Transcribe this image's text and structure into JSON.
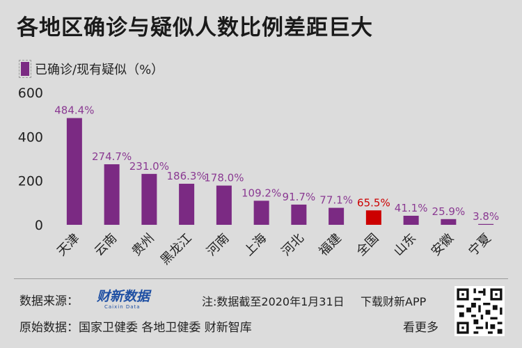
{
  "title": "各地区确诊与疑似人数比例差距巨大",
  "legend": {
    "label": "已确诊/现有疑似（%）",
    "color": "#7b2a83"
  },
  "colors": {
    "bar": "#7b2a83",
    "highlight": "#cc0000",
    "label": "#8a3a92",
    "axis": "#222222"
  },
  "footer": {
    "source_label": "数据来源：",
    "logo_text": "财新数据",
    "logo_sub": "Caixin Data",
    "note": "注:数据截至2020年1月31日",
    "download": "下载财新APP",
    "origin": "原始数据：国家卫健委  各地卫健委  财新智库",
    "more": "看更多"
  },
  "chart_data": {
    "type": "bar",
    "title": "各地区确诊与疑似人数比例差距巨大",
    "categories": [
      "天津",
      "云南",
      "贵州",
      "黑龙江",
      "河南",
      "上海",
      "河北",
      "福建",
      "全国",
      "山东",
      "安徽",
      "宁夏"
    ],
    "values": [
      484.4,
      274.7,
      231.0,
      186.3,
      178.0,
      109.2,
      91.7,
      77.1,
      65.5,
      41.1,
      25.9,
      3.8
    ],
    "data_labels": [
      "484.4%",
      "274.7%",
      "231.0%",
      "186.3%",
      "178.0%",
      "109.2%",
      "91.7%",
      "77.1%",
      "65.5%",
      "41.1%",
      "25.9%",
      "3.8%"
    ],
    "highlight_category": "全国",
    "series_name": "已确诊/现有疑似（%）",
    "ylim": [
      0,
      600
    ],
    "yticks": [
      0,
      200,
      400,
      600
    ],
    "grid": false,
    "legend": "top-left"
  }
}
